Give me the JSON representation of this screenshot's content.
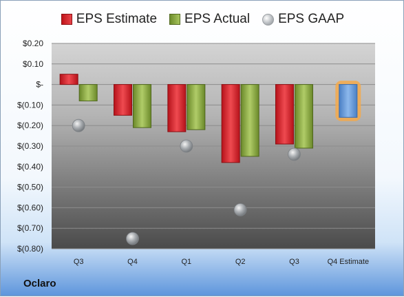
{
  "page": {
    "company": "Oclaro"
  },
  "legend": {
    "estimate": "EPS Estimate",
    "actual": "EPS Actual",
    "gaap": "EPS GAAP"
  },
  "colors": {
    "estimate": "#d42a2f",
    "actual": "#8fad45",
    "gaap": "#b8bcc0",
    "forecast": "#5f95d6",
    "forecast_glow": "#f5a94a"
  },
  "chart_data": {
    "type": "bar",
    "categories": [
      "Q3",
      "Q4",
      "Q1",
      "Q2",
      "Q3",
      "Q4 Estimate"
    ],
    "ylim": [
      -0.8,
      0.2
    ],
    "yticks": [
      0.2,
      0.1,
      0,
      -0.1,
      -0.2,
      -0.3,
      -0.4,
      -0.5,
      -0.6,
      -0.7,
      -0.8
    ],
    "ytick_labels": [
      "$0.20",
      "$0.10",
      "$-",
      "$(0.10)",
      "$(0.20)",
      "$(0.30)",
      "$(0.40)",
      "$(0.50)",
      "$(0.60)",
      "$(0.70)",
      "$(0.80)"
    ],
    "series": [
      {
        "name": "EPS Estimate",
        "values": [
          0.05,
          -0.15,
          -0.23,
          -0.38,
          -0.29,
          -0.16
        ]
      },
      {
        "name": "EPS Actual",
        "values": [
          -0.08,
          -0.21,
          -0.22,
          -0.35,
          -0.31,
          null
        ]
      },
      {
        "name": "EPS GAAP",
        "values": [
          -0.2,
          -0.75,
          -0.3,
          -0.61,
          -0.34,
          null
        ]
      }
    ],
    "grid": true,
    "legend_position": "top"
  }
}
